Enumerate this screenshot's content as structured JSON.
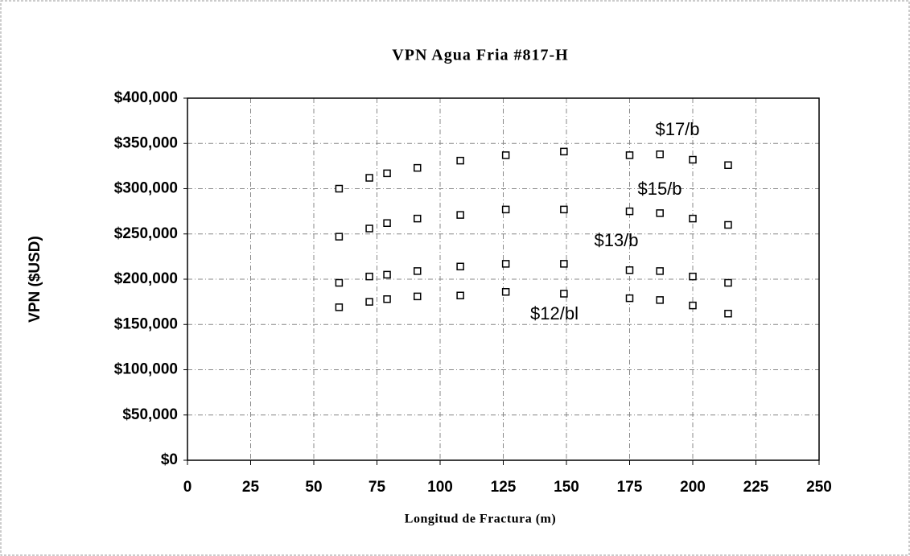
{
  "chart_data": {
    "type": "line",
    "title": "VPN Agua Fria #817-H",
    "x_label": "Longitud de Fractura (m)",
    "y_label": "VPN ($USD)",
    "x": [
      60,
      72,
      79,
      91,
      108,
      126,
      149,
      175,
      187,
      200,
      214
    ],
    "series": [
      {
        "name": "$17/b",
        "color": "#000000",
        "values": [
          300000,
          312000,
          317000,
          323000,
          331000,
          337000,
          341000,
          337000,
          338000,
          332000,
          326000
        ]
      },
      {
        "name": "$15/b",
        "color": "#000000",
        "values": [
          247000,
          256000,
          262000,
          267000,
          271000,
          277000,
          277000,
          275000,
          273000,
          267000,
          260000
        ]
      },
      {
        "name": "$13/b",
        "color": "#000000",
        "values": [
          196000,
          203000,
          205000,
          209000,
          214000,
          217000,
          217000,
          210000,
          209000,
          203000,
          196000
        ]
      },
      {
        "name": "$12/bl",
        "color": "#000000",
        "values": [
          169000,
          175000,
          178000,
          181000,
          182000,
          186000,
          184000,
          179000,
          177000,
          171000,
          162000
        ]
      }
    ],
    "xlim": [
      0,
      250
    ],
    "xticks": [
      0,
      25,
      50,
      75,
      100,
      125,
      150,
      175,
      200,
      225,
      250
    ],
    "ylim": [
      0,
      400000
    ],
    "yticks": [
      {
        "value": 0,
        "label": "$0"
      },
      {
        "value": 50000,
        "label": "$50,000"
      },
      {
        "value": 100000,
        "label": "$100,000"
      },
      {
        "value": 150000,
        "label": "$150,000"
      },
      {
        "value": 200000,
        "label": "$200,000"
      },
      {
        "value": 250000,
        "label": "$250,000"
      },
      {
        "value": 300000,
        "label": "$300,000"
      },
      {
        "value": 350000,
        "label": "$350,000"
      },
      {
        "value": 400000,
        "label": "$400,000"
      }
    ],
    "grid": true
  }
}
